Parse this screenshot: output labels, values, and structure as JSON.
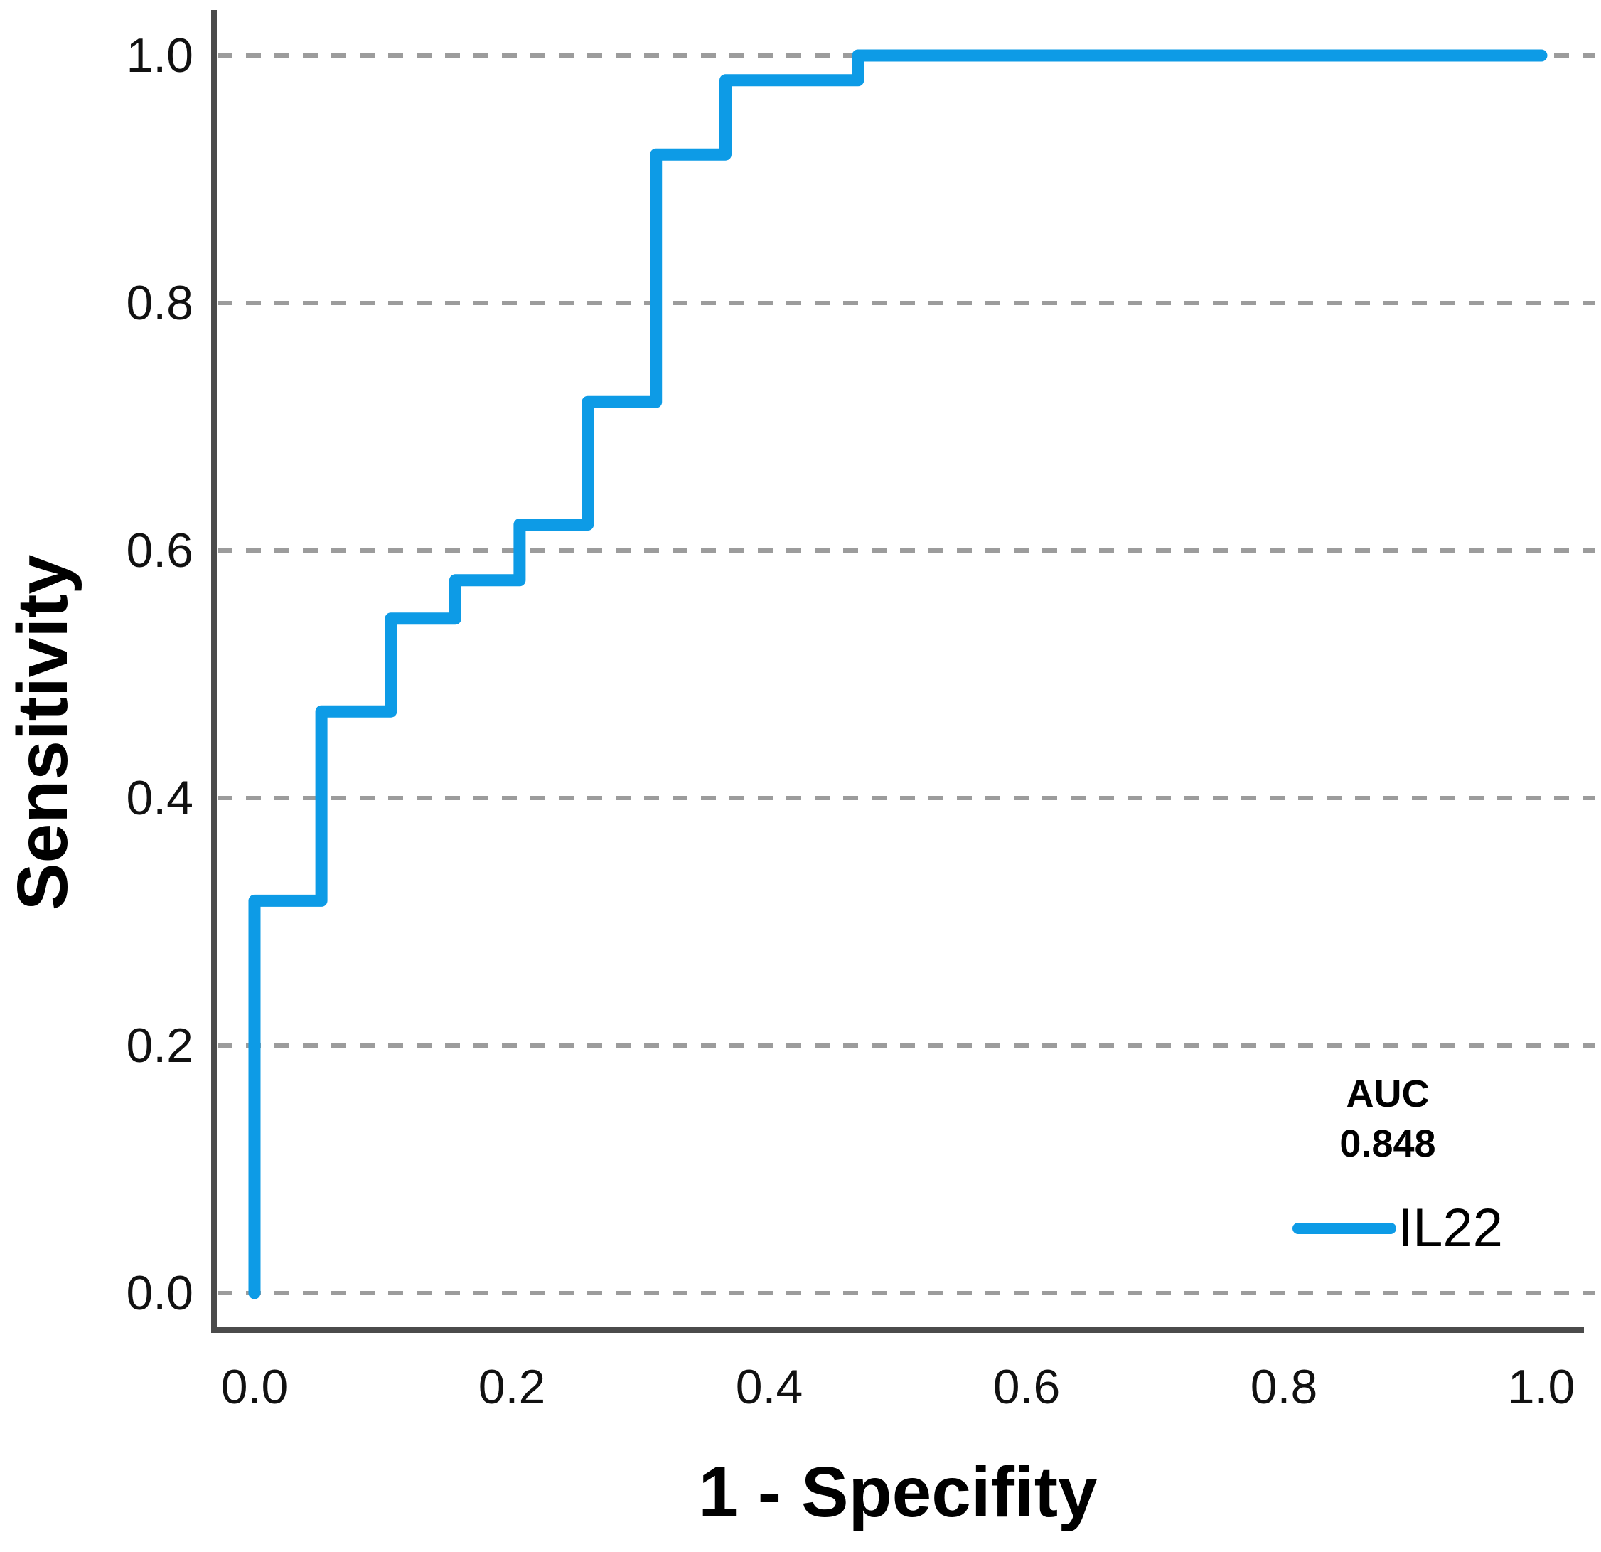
{
  "chart_data": {
    "type": "line",
    "subtype": "roc-step-curve",
    "title": "",
    "xlabel": "1 - Specifity",
    "ylabel": "Sensitivity",
    "xlim": [
      0.0,
      1.0
    ],
    "ylim": [
      0.0,
      1.0
    ],
    "x_ticks": [
      "0.0",
      "0.2",
      "0.4",
      "0.6",
      "0.8",
      "1.0"
    ],
    "y_ticks": [
      "0.0",
      "0.2",
      "0.4",
      "0.6",
      "0.8",
      "1.0"
    ],
    "grid": "horizontal dashed gridlines at each y tick, no vertical gridlines",
    "legend_position": "lower-right",
    "series": [
      {
        "name": "IL22",
        "auc": "0.848",
        "color": "#0d9be6",
        "points": [
          [
            0.0,
            0.0
          ],
          [
            0.0,
            0.317
          ],
          [
            0.052,
            0.317
          ],
          [
            0.052,
            0.47
          ],
          [
            0.106,
            0.47
          ],
          [
            0.106,
            0.545
          ],
          [
            0.156,
            0.545
          ],
          [
            0.156,
            0.576
          ],
          [
            0.206,
            0.576
          ],
          [
            0.206,
            0.621
          ],
          [
            0.259,
            0.621
          ],
          [
            0.259,
            0.72
          ],
          [
            0.312,
            0.72
          ],
          [
            0.312,
            0.92
          ],
          [
            0.366,
            0.92
          ],
          [
            0.366,
            0.98
          ],
          [
            0.469,
            0.98
          ],
          [
            0.469,
            1.0
          ],
          [
            1.0,
            1.0
          ]
        ]
      }
    ]
  },
  "axes": {
    "x_title": "1 - Specifity",
    "y_title": "Sensitivity"
  },
  "legend": {
    "auc_heading": "AUC",
    "auc_value": "0.848",
    "series_label": "IL22"
  },
  "colors": {
    "curve": "#0d9be6",
    "gridline": "#9c9c9c",
    "axis": "#4b4b4b",
    "text": "#000000"
  }
}
